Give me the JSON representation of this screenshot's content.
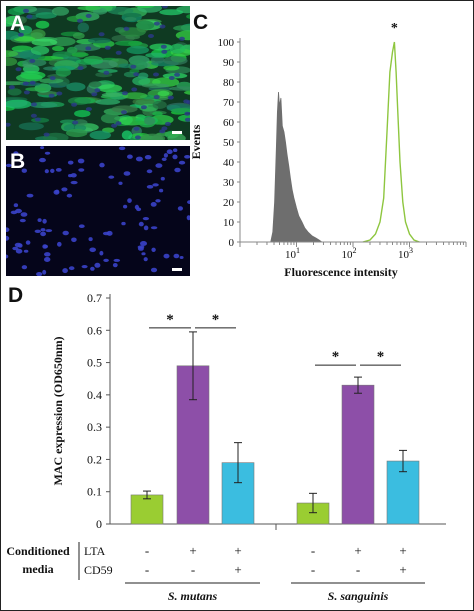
{
  "panels": {
    "a_label": "A",
    "b_label": "B",
    "c_label": "C",
    "d_label": "D"
  },
  "chart_data": [
    {
      "type": "area",
      "panel": "C",
      "xlabel": "Fluorescence intensity",
      "ylabel": "Events",
      "x_scale": "log",
      "xlim": [
        1,
        10000
      ],
      "ylim": [
        0,
        100
      ],
      "x_ticks": [
        "10",
        "10",
        "10"
      ],
      "x_tick_exponents": [
        "1",
        "2",
        "3"
      ],
      "y_ticks": [
        "0",
        "10",
        "20",
        "30",
        "40",
        "50",
        "60",
        "70",
        "80",
        "90",
        "100"
      ],
      "annotation": "*",
      "series": [
        {
          "color": "#6e6e6e",
          "style": "filled",
          "points": [
            [
              3.5,
              0
            ],
            [
              3.8,
              5
            ],
            [
              4.1,
              20
            ],
            [
              4.4,
              48
            ],
            [
              4.6,
              65
            ],
            [
              4.8,
              75
            ],
            [
              5,
              68
            ],
            [
              5.3,
              72
            ],
            [
              5.6,
              58
            ],
            [
              6,
              55
            ],
            [
              6.4,
              50
            ],
            [
              6.8,
              44
            ],
            [
              7.3,
              38
            ],
            [
              7.8,
              32
            ],
            [
              8.4,
              26
            ],
            [
              9,
              22
            ],
            [
              10,
              17
            ],
            [
              11,
              13
            ],
            [
              12.5,
              10
            ],
            [
              14,
              7
            ],
            [
              16,
              5
            ],
            [
              19,
              3
            ],
            [
              22,
              2
            ],
            [
              25,
              1
            ],
            [
              28,
              0
            ]
          ]
        },
        {
          "color": "#8ec63f",
          "style": "line",
          "points": [
            [
              150,
              0
            ],
            [
              200,
              1
            ],
            [
              250,
              4
            ],
            [
              300,
              10
            ],
            [
              350,
              22
            ],
            [
              400,
              55
            ],
            [
              450,
              85
            ],
            [
              500,
              95
            ],
            [
              540,
              100
            ],
            [
              580,
              85
            ],
            [
              620,
              65
            ],
            [
              680,
              40
            ],
            [
              760,
              20
            ],
            [
              850,
              10
            ],
            [
              1000,
              4
            ],
            [
              1200,
              1
            ],
            [
              1500,
              0
            ]
          ]
        }
      ]
    },
    {
      "type": "bar",
      "panel": "D",
      "ylabel": "MAC expression (OD650nm)",
      "ylim": [
        0,
        0.7
      ],
      "y_ticks": [
        "0",
        "0.1",
        "0.2",
        "0.3",
        "0.4",
        "0.5",
        "0.6",
        "0.7"
      ],
      "groups": [
        {
          "name": "S. mutans",
          "bars": [
            {
              "value": 0.09,
              "error": 0.012,
              "color": "#9acd32"
            },
            {
              "value": 0.49,
              "error": 0.105,
              "color": "#8d4fa8"
            },
            {
              "value": 0.19,
              "error": 0.062,
              "color": "#3bbde0"
            }
          ],
          "significance": [
            [
              "*",
              0,
              1
            ],
            [
              "*",
              1,
              2
            ]
          ]
        },
        {
          "name": "S. sanguinis",
          "bars": [
            {
              "value": 0.065,
              "error": 0.03,
              "color": "#9acd32"
            },
            {
              "value": 0.43,
              "error": 0.025,
              "color": "#8d4fa8"
            },
            {
              "value": 0.195,
              "error": 0.033,
              "color": "#3bbde0"
            }
          ],
          "significance": [
            [
              "*",
              0,
              1
            ],
            [
              "*",
              1,
              2
            ]
          ]
        }
      ],
      "conditions": {
        "label": "Conditioned media",
        "label_line1": "Conditioned",
        "label_line2": "media",
        "rows": [
          {
            "name": "LTA",
            "values": [
              "-",
              "+",
              "+",
              "-",
              "+",
              "+"
            ]
          },
          {
            "name": "CD59",
            "values": [
              "-",
              "-",
              "+",
              "-",
              "-",
              "+"
            ]
          }
        ]
      }
    }
  ]
}
